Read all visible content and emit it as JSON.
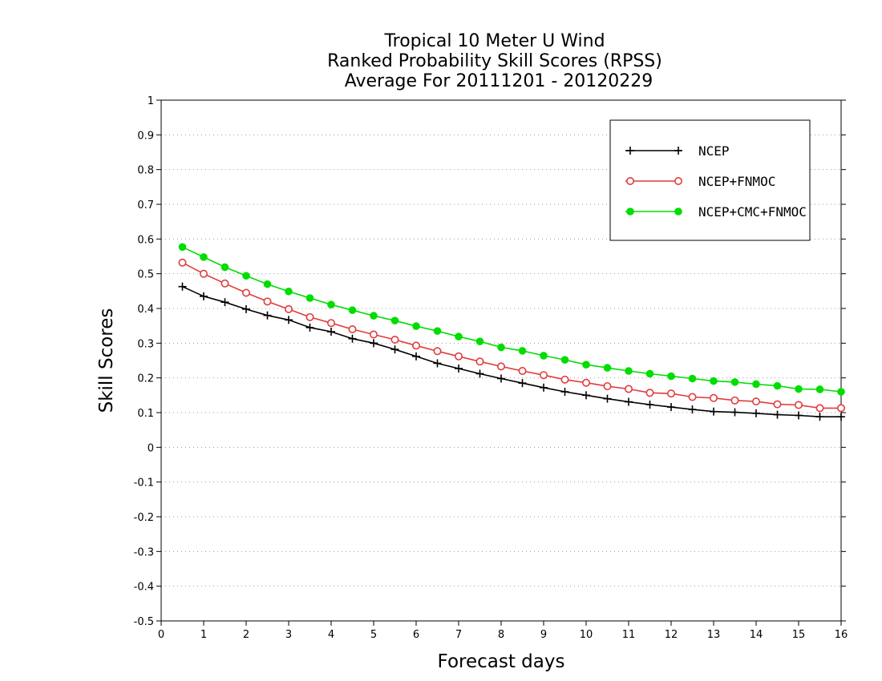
{
  "chart_data": {
    "type": "line",
    "title_lines": [
      "Tropical 10 Meter U Wind",
      "Ranked Probability Skill Scores (RPSS)",
      "Average For 20111201 - 20120229"
    ],
    "xlabel": "Forecast days",
    "ylabel": "Skill Scores",
    "xlim": [
      0,
      16
    ],
    "ylim": [
      -0.5,
      1
    ],
    "x_ticks": [
      0,
      1,
      2,
      3,
      4,
      5,
      6,
      7,
      8,
      9,
      10,
      11,
      12,
      13,
      14,
      15,
      16
    ],
    "y_ticks": [
      -0.5,
      -0.4,
      -0.3,
      -0.2,
      -0.1,
      0,
      0.1,
      0.2,
      0.3,
      0.4,
      0.5,
      0.6,
      0.7,
      0.8,
      0.9,
      1
    ],
    "y_tick_labels": [
      "-0.5",
      "-0.4",
      "-0.3",
      "-0.2",
      "-0.1",
      "0",
      "0.1",
      "0.2",
      "0.3",
      "0.4",
      "0.5",
      "0.6",
      "0.7",
      "0.8",
      "0.9",
      "1"
    ],
    "grid": "horizontal-dotted",
    "legend_position": "top-right",
    "x": [
      0.5,
      1,
      1.5,
      2,
      2.5,
      3,
      3.5,
      4,
      4.5,
      5,
      5.5,
      6,
      6.5,
      7,
      7.5,
      8,
      8.5,
      9,
      9.5,
      10,
      10.5,
      11,
      11.5,
      12,
      12.5,
      13,
      13.5,
      14,
      14.5,
      15,
      15.5,
      16
    ],
    "series": [
      {
        "name": "NCEP",
        "color": "#000000",
        "marker": "plus",
        "values": [
          0.463,
          0.435,
          0.418,
          0.398,
          0.38,
          0.367,
          0.345,
          0.333,
          0.313,
          0.3,
          0.282,
          0.262,
          0.242,
          0.227,
          0.212,
          0.198,
          0.185,
          0.172,
          0.16,
          0.15,
          0.14,
          0.131,
          0.123,
          0.116,
          0.109,
          0.103,
          0.101,
          0.098,
          0.094,
          0.092,
          0.088,
          0.088
        ]
      },
      {
        "name": "NCEP+FNMOC",
        "color": "#e03c3c",
        "marker": "open-circle",
        "values": [
          0.532,
          0.5,
          0.472,
          0.445,
          0.42,
          0.398,
          0.375,
          0.358,
          0.34,
          0.325,
          0.31,
          0.293,
          0.277,
          0.262,
          0.247,
          0.233,
          0.22,
          0.208,
          0.195,
          0.186,
          0.176,
          0.168,
          0.157,
          0.155,
          0.145,
          0.142,
          0.135,
          0.132,
          0.124,
          0.122,
          0.113,
          0.113
        ]
      },
      {
        "name": "NCEP+CMC+FNMOC",
        "color": "#00dd00",
        "marker": "filled-circle",
        "values": [
          0.577,
          0.548,
          0.519,
          0.494,
          0.47,
          0.449,
          0.43,
          0.411,
          0.395,
          0.379,
          0.365,
          0.349,
          0.335,
          0.319,
          0.305,
          0.288,
          0.278,
          0.264,
          0.252,
          0.238,
          0.229,
          0.22,
          0.212,
          0.205,
          0.198,
          0.191,
          0.188,
          0.182,
          0.177,
          0.168,
          0.167,
          0.16
        ]
      }
    ]
  }
}
